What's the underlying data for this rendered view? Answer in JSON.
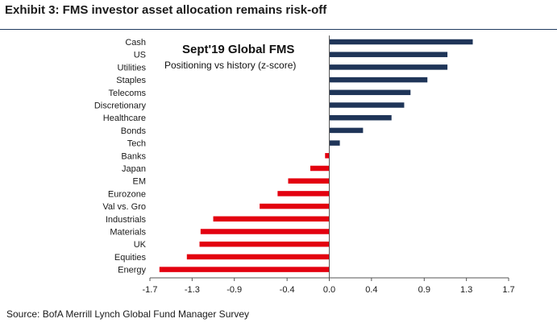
{
  "exhibit": {
    "title": "Exhibit 3: FMS investor asset allocation remains risk-off",
    "source": "Source: BofA Merrill Lynch Global Fund Manager Survey"
  },
  "colors": {
    "positive": "#1f3558",
    "negative": "#e3000f",
    "rule": "#1f3a5f",
    "axis": "#555555"
  },
  "chart_data": {
    "type": "bar",
    "orientation": "horizontal",
    "title": "Sept'19 Global FMS",
    "subtitle": "Positioning vs history (z-score)",
    "xlabel": "",
    "ylabel": "",
    "xlim": [
      -1.7,
      1.7
    ],
    "ticks": [
      -1.7,
      -1.3,
      -0.9,
      -0.4,
      0.0,
      0.4,
      0.9,
      1.3,
      1.7
    ],
    "tick_labels": [
      "-1.7",
      "-1.3",
      "-0.9",
      "-0.4",
      "0.0",
      "0.4",
      "0.9",
      "1.3",
      "1.7"
    ],
    "grid": false,
    "categories": [
      "Cash",
      "US",
      "Utilities",
      "Staples",
      "Telecoms",
      "Discretionary",
      "Healthcare",
      "Bonds",
      "Tech",
      "Banks",
      "Japan",
      "EM",
      "Eurozone",
      "Val vs. Gro",
      "Industrials",
      "Materials",
      "UK",
      "Equities",
      "Energy"
    ],
    "values": [
      1.36,
      1.12,
      1.12,
      0.93,
      0.77,
      0.71,
      0.59,
      0.32,
      0.1,
      -0.04,
      -0.18,
      -0.39,
      -0.49,
      -0.66,
      -1.1,
      -1.22,
      -1.23,
      -1.35,
      -1.61
    ]
  }
}
